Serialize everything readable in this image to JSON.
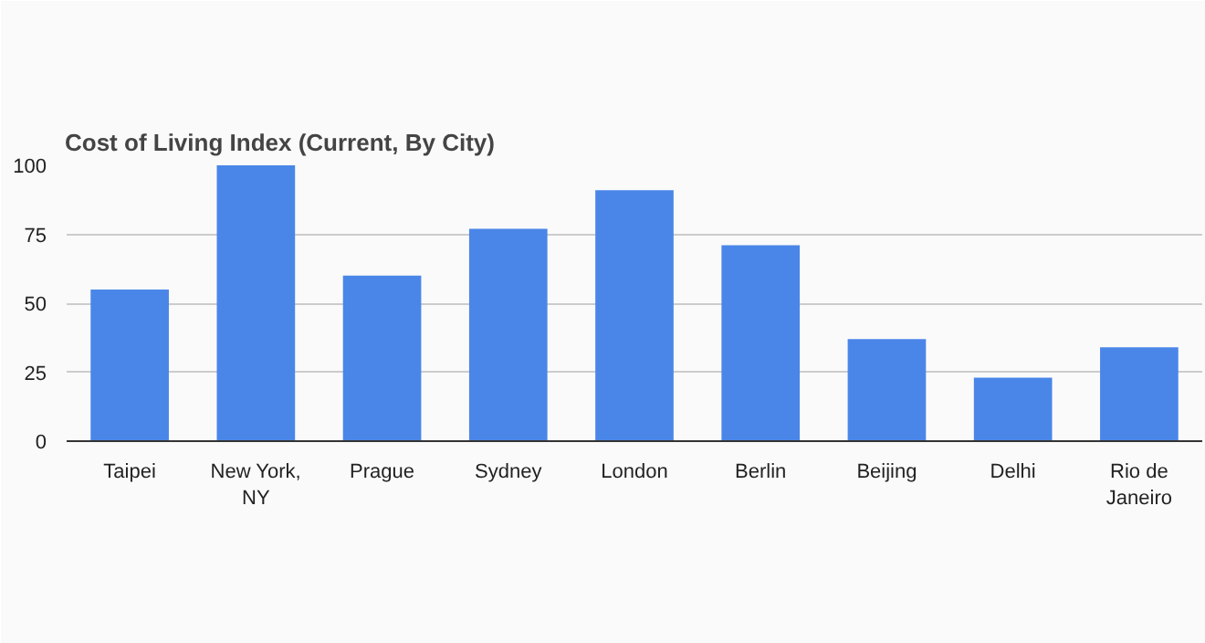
{
  "chart_data": {
    "type": "bar",
    "title": "Cost of Living Index (Current, By City)",
    "categories": [
      "Taipei",
      "New York, NY",
      "Prague",
      "Sydney",
      "London",
      "Berlin",
      "Beijing",
      "Delhi",
      "Rio de Janeiro"
    ],
    "values": [
      55,
      100,
      60,
      77,
      91,
      71,
      37,
      23,
      34
    ],
    "color": "#4a86e8",
    "ylim": [
      0,
      100
    ],
    "yticks": [
      0,
      25,
      50,
      75,
      100
    ],
    "grid": "y"
  }
}
